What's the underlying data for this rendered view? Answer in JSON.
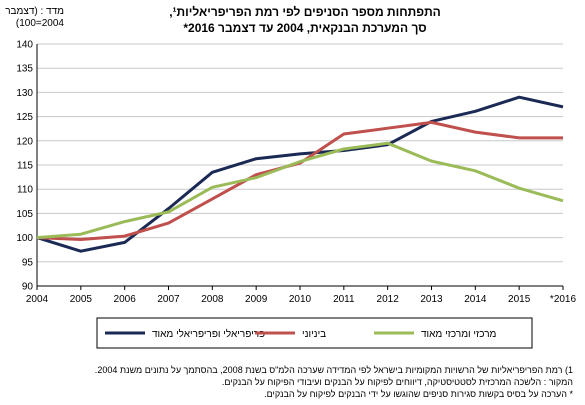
{
  "chart_data": {
    "type": "line",
    "title": "התפתחות מספר הסניפים לפי רמת הפריפריאליות¹,",
    "subtitle": "סך המערכת הבנקאית, 2004 עד דצמבר 2016*",
    "ylabel": "מדד : (דצמבר 2004=100)",
    "xlabel": "",
    "categories": [
      "2004",
      "2005",
      "2006",
      "2007",
      "2008",
      "2009",
      "2010",
      "2011",
      "2012",
      "2013",
      "2014",
      "2015",
      "*2016"
    ],
    "ylim": [
      90,
      140
    ],
    "yticks": [
      90,
      95,
      100,
      105,
      110,
      115,
      120,
      125,
      130,
      135,
      140
    ],
    "grid": true,
    "legend_position": "bottom",
    "series": [
      {
        "name": "פריפריאלי ופריפריאלי מאוד",
        "color": "#1b2a55",
        "values": [
          100,
          97.2,
          99,
          106,
          113.5,
          116.3,
          117.3,
          118,
          119.2,
          124,
          126.1,
          129,
          127
        ]
      },
      {
        "name": "ביניוני",
        "color": "#c0504d",
        "values": [
          100,
          99.6,
          100.3,
          103,
          108,
          113,
          115.4,
          121.4,
          122.6,
          123.8,
          121.8,
          120.6,
          120.6
        ]
      },
      {
        "name": "מרכזי ומרכזי מאוד",
        "color": "#9bbb59",
        "values": [
          100,
          100.7,
          103.3,
          105.3,
          110.4,
          112.4,
          115.7,
          118.3,
          119.5,
          115.8,
          113.8,
          110.2,
          107.6
        ]
      }
    ]
  },
  "notes": [
    "1) רמת הפריפריאליות של הרשויות המקומיות בישראל לפי המדידה שערכה הלמ\"ס בשנת 2008, בהסתמך על נתונים משנת 2004.",
    "המקור : הלשכה המרכזית לסטטיסטיקה, דיווחים לפיקוח על הבנקים ועיבודי הפיקוח על הבנקים.",
    "* הערכה על בסיס בקשות סגירות סניפים שהוגשו על ידי הבנקים לפיקוח על הבנקים."
  ]
}
